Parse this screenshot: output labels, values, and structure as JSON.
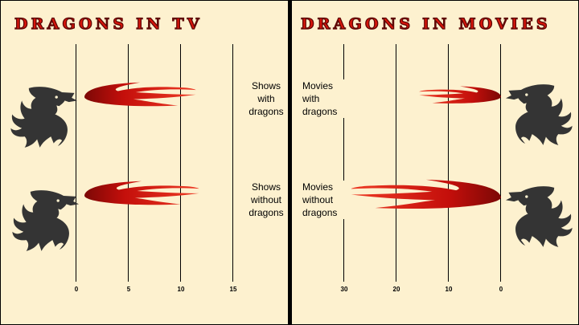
{
  "chart_data": [
    {
      "type": "bar",
      "title": "DRAGONS IN TV",
      "categories": [
        "Shows\nwith\ndragons",
        "Shows\nwithout\ndragons"
      ],
      "values": [
        11.5,
        11.8
      ],
      "xlim": [
        0,
        15
      ],
      "xticks": [
        "0",
        "5",
        "10",
        "15"
      ],
      "direction": "left-to-right",
      "grid": true
    },
    {
      "type": "bar",
      "title": "DRAGONS IN MOVIES",
      "categories": [
        "Movies\nwith\ndragons",
        "Movies\nwithout\ndragons"
      ],
      "values": [
        15.5,
        28.5
      ],
      "xlim": [
        0,
        30
      ],
      "xticks": [
        "30",
        "20",
        "10",
        "0"
      ],
      "direction": "right-to-left",
      "grid": true
    }
  ],
  "colors": {
    "background": "#fdf1cf",
    "title": "#d8150b",
    "flame": "#c0100c",
    "dragon": "#343434"
  },
  "icons": {
    "dragon": "dragon-head-icon",
    "flame": "flame-icon"
  }
}
